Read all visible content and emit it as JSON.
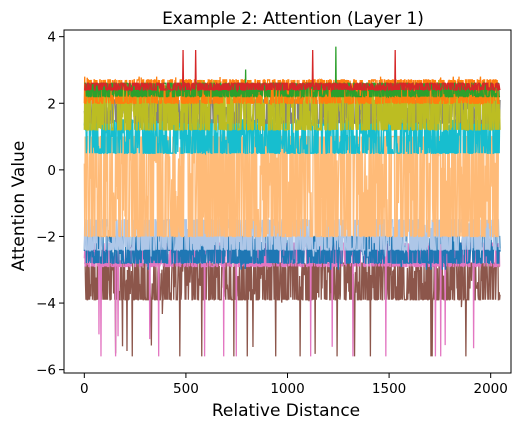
{
  "chart_data": {
    "type": "line",
    "title": "Example 2: Attention (Layer 1)",
    "xlabel": "Relative Distance",
    "ylabel": "Attention Value",
    "xlim": [
      -100,
      2100
    ],
    "ylim": [
      -6.1,
      4.2
    ],
    "x_ticks": [
      0,
      500,
      1000,
      1500,
      2000
    ],
    "y_ticks": [
      -6,
      -4,
      -2,
      0,
      2,
      4
    ],
    "x_tick_labels": [
      "0",
      "500",
      "1000",
      "1500",
      "2000"
    ],
    "y_tick_labels": [
      "−6",
      "−4",
      "−2",
      "0",
      "2",
      "4"
    ],
    "grid": false,
    "legend": "none",
    "x_range": [
      0,
      2047
    ],
    "series": [
      {
        "color": "#8c564b",
        "band": [
          -3.9,
          -2.8
        ],
        "spikes": [
          -5.6,
          -3.9
        ],
        "spike_rate": 0.02
      },
      {
        "color": "#e377c2",
        "band": [
          -2.9,
          -2.2
        ],
        "spikes": [
          -5.6,
          -4.8
        ],
        "spike_rate": 0.02
      },
      {
        "color": "#1f77b4",
        "band": [
          -2.8,
          -2.0
        ],
        "spikes": [
          -3.0,
          -2.8
        ],
        "spike_rate": 0.01
      },
      {
        "color": "#aec7e8",
        "band": [
          -2.4,
          -1.5
        ],
        "spikes": [
          -2.6,
          -2.4
        ],
        "spike_rate": 0.01
      },
      {
        "color": "#ffbb78",
        "band": [
          -2.0,
          1.0
        ],
        "spikes": [
          1.0,
          1.2
        ],
        "spike_rate": 0.01
      },
      {
        "color": "#17becf",
        "band": [
          0.5,
          1.5
        ],
        "spikes": [
          1.5,
          1.8
        ],
        "spike_rate": 0.01
      },
      {
        "color": "#7f7f7f",
        "band": [
          1.4,
          2.1
        ],
        "spikes": [
          2.1,
          2.6
        ],
        "spike_rate": 0.01
      },
      {
        "color": "#bcbd22",
        "band": [
          1.2,
          2.5
        ],
        "spikes": [
          2.5,
          2.7
        ],
        "spike_rate": 0.01
      },
      {
        "color": "#ff7f0e",
        "band": [
          2.0,
          2.7
        ],
        "spikes": [
          2.7,
          2.8
        ],
        "spike_rate": 0.01
      },
      {
        "color": "#2ca02c",
        "band": [
          2.2,
          2.6
        ],
        "spikes": [
          2.6,
          3.7
        ],
        "spike_rate": 0.005
      },
      {
        "color": "#d62728",
        "band": [
          2.4,
          2.6
        ],
        "spikes": [
          2.6,
          3.6
        ],
        "spike_rate": 0.01
      }
    ]
  }
}
